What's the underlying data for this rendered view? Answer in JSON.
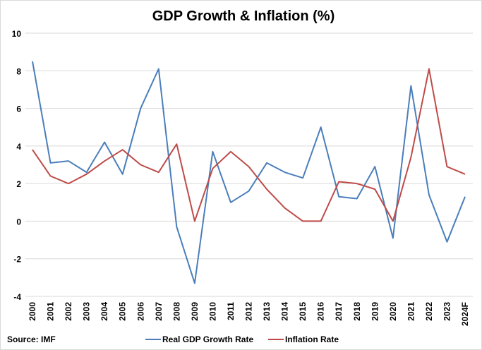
{
  "chart_data": {
    "type": "line",
    "title": "GDP Growth & Inflation (%)",
    "source": "Source: IMF",
    "categories": [
      "2000",
      "2001",
      "2002",
      "2003",
      "2004",
      "2005",
      "2006",
      "2007",
      "2008",
      "2009",
      "2010",
      "2011",
      "2012",
      "2013",
      "2014",
      "2015",
      "2016",
      "2017",
      "2018",
      "2019",
      "2020",
      "2021",
      "2022",
      "2023",
      "2024F"
    ],
    "ylim": [
      -4,
      10
    ],
    "yticks": [
      -4,
      -2,
      0,
      2,
      4,
      6,
      8,
      10
    ],
    "grid": true,
    "legend": "bottom",
    "series": [
      {
        "name": "Real GDP Growth Rate",
        "color": "#4a7ebb",
        "values": [
          8.5,
          3.1,
          3.2,
          2.6,
          4.2,
          2.5,
          6.0,
          8.1,
          -0.3,
          -3.3,
          3.7,
          1.0,
          1.6,
          3.1,
          2.6,
          2.3,
          5.0,
          1.3,
          1.2,
          2.9,
          -0.9,
          7.2,
          1.4,
          -1.1,
          1.3
        ]
      },
      {
        "name": "Inflation Rate",
        "color": "#be4b48",
        "values": [
          3.8,
          2.4,
          2.0,
          2.5,
          3.2,
          3.8,
          3.0,
          2.6,
          4.1,
          0.0,
          2.8,
          3.7,
          2.9,
          1.7,
          0.7,
          0.0,
          0.0,
          2.1,
          2.0,
          1.7,
          0.0,
          3.4,
          8.1,
          2.9,
          2.5
        ]
      }
    ]
  }
}
